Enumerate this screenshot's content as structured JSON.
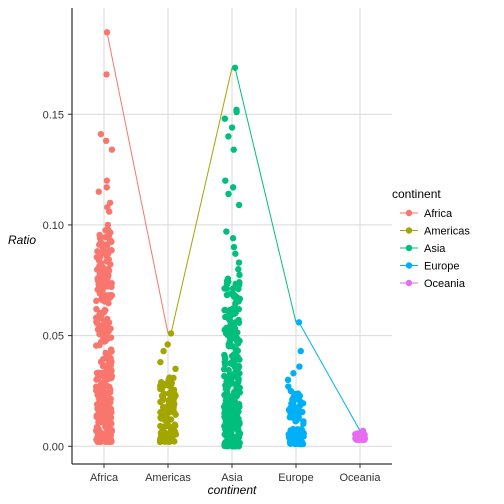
{
  "chart_data": {
    "type": "scatter",
    "xlabel": "continent",
    "ylabel": "Ratio",
    "categories": [
      "Africa",
      "Americas",
      "Asia",
      "Europe",
      "Oceania"
    ],
    "ylim": [
      -0.008,
      0.198
    ],
    "y_ticks": [
      0.0,
      0.05,
      0.1,
      0.15
    ],
    "y_tick_labels": [
      "0.00",
      "0.05",
      "0.10",
      "0.15"
    ],
    "grid": true,
    "legend": {
      "title": "continent",
      "position": "right"
    },
    "series": [
      {
        "name": "Africa",
        "color": "#F8766D",
        "max_value": 0.187,
        "outliers": [
          0.187,
          0.168,
          0.141,
          0.138,
          0.134,
          0.12,
          0.117,
          0.115,
          0.11,
          0.108,
          0.106,
          0.1
        ],
        "range": [
          0.002,
          0.098
        ]
      },
      {
        "name": "Americas",
        "color": "#A3A500",
        "max_value": 0.051,
        "outliers": [
          0.051,
          0.046,
          0.043,
          0.038,
          0.035
        ],
        "range": [
          0.002,
          0.033
        ]
      },
      {
        "name": "Asia",
        "color": "#00BF7D",
        "max_value": 0.171,
        "outliers": [
          0.171,
          0.152,
          0.151,
          0.148,
          0.144,
          0.14,
          0.134,
          0.12,
          0.117,
          0.114,
          0.109,
          0.097,
          0.094,
          0.09,
          0.087,
          0.083,
          0.08
        ],
        "range": [
          0.0,
          0.078
        ]
      },
      {
        "name": "Europe",
        "color": "#00B0F6",
        "max_value": 0.056,
        "outliers": [
          0.056,
          0.043,
          0.036,
          0.033,
          0.03,
          0.027,
          0.025
        ],
        "range": [
          0.001,
          0.024
        ]
      },
      {
        "name": "Oceania",
        "color": "#E76BF3",
        "max_value": 0.007,
        "outliers": [
          0.007
        ],
        "range": [
          0.003,
          0.006
        ]
      }
    ]
  }
}
